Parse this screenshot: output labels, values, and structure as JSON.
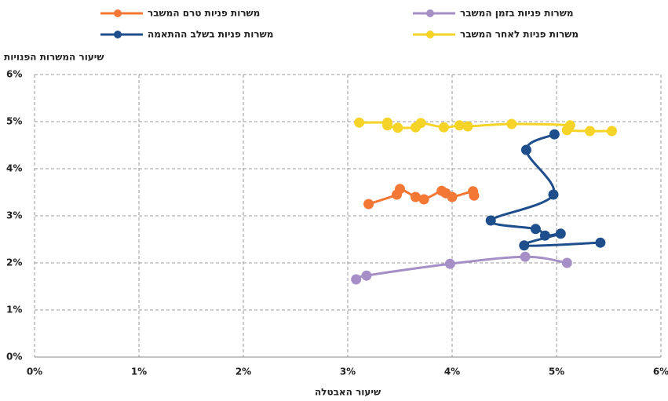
{
  "chart_data": {
    "type": "scatter",
    "x_label": "שיעור האבטלה",
    "y_label": "שיעור המשרות הפנויות",
    "xlim": [
      0,
      6
    ],
    "ylim": [
      0,
      6
    ],
    "xticks": [
      {
        "value": 0,
        "label": "0%"
      },
      {
        "value": 1,
        "label": "1%"
      },
      {
        "value": 2,
        "label": "2%"
      },
      {
        "value": 3,
        "label": "3%"
      },
      {
        "value": 4,
        "label": "4%"
      },
      {
        "value": 5,
        "label": "5%"
      },
      {
        "value": 6,
        "label": "6%"
      }
    ],
    "yticks": [
      {
        "value": 0,
        "label": "0%"
      },
      {
        "value": 1,
        "label": "1%"
      },
      {
        "value": 2,
        "label": "2%"
      },
      {
        "value": 3,
        "label": "3%"
      },
      {
        "value": 4,
        "label": "4%"
      },
      {
        "value": 5,
        "label": "5%"
      },
      {
        "value": 6,
        "label": "6%"
      }
    ],
    "grid": true,
    "series": [
      {
        "name": "משרות פניות טרם המשבר",
        "color": "#f37735",
        "x": [
          3.2,
          3.47,
          3.5,
          3.65,
          3.73,
          3.9,
          3.94,
          4.0,
          4.2,
          4.21
        ],
        "values": [
          3.25,
          3.45,
          3.57,
          3.4,
          3.35,
          3.53,
          3.48,
          3.4,
          3.52,
          3.43
        ]
      },
      {
        "name": "משרות פניות בזמן המשבר",
        "color": "#a68fc6",
        "x": [
          3.08,
          3.18,
          3.98,
          4.7,
          5.1
        ],
        "values": [
          1.65,
          1.73,
          1.98,
          2.13,
          2.0
        ]
      },
      {
        "name": "משרות פניות בשלב ההתאמה",
        "color": "#1f4e8c",
        "x": [
          5.42,
          4.69,
          5.04,
          4.89,
          4.8,
          4.37,
          4.97,
          4.71,
          4.98
        ],
        "values": [
          2.43,
          2.37,
          2.62,
          2.58,
          2.72,
          2.9,
          3.45,
          4.4,
          4.73
        ]
      },
      {
        "name": "משרות פניות לאחר המשבר",
        "color": "#f5d327",
        "x": [
          3.11,
          3.38,
          3.38,
          3.48,
          3.65,
          3.7,
          3.92,
          4.07,
          4.15,
          4.57,
          5.13,
          5.1,
          5.32,
          5.53
        ],
        "values": [
          4.98,
          4.98,
          4.92,
          4.87,
          4.88,
          4.97,
          4.88,
          4.92,
          4.9,
          4.95,
          4.92,
          4.82,
          4.8,
          4.8
        ]
      }
    ]
  }
}
